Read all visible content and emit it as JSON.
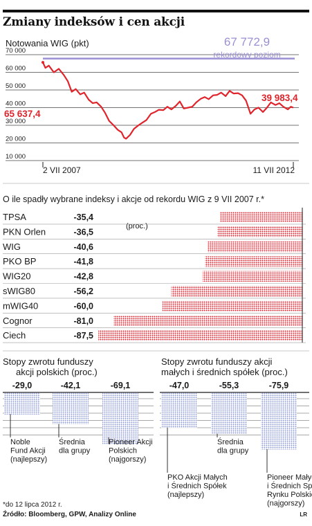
{
  "header": {
    "title": "Zmiany indeksów i cen akcji"
  },
  "chart_data": [
    {
      "type": "line",
      "title": "Notowania WIG (pkt)",
      "ylim": [
        10000,
        70000
      ],
      "yticks": [
        "70 000",
        "60 000",
        "50 000",
        "40 000",
        "30 000",
        "20 000",
        "10 000"
      ],
      "ytick_values": [
        70000,
        60000,
        50000,
        40000,
        30000,
        20000,
        10000
      ],
      "xlabels": [
        "2 VII 2007",
        "11 VII 2012"
      ],
      "record": {
        "value": 67772.9,
        "label": "67 772,9",
        "sublabel": "rekordowy poziom"
      },
      "start_label": "65 637,4",
      "end_label": "39 983,4",
      "series": [
        {
          "x": [
            2007.5,
            2007.55,
            2007.62,
            2007.72,
            2007.82,
            2007.92,
            2008.0,
            2008.08,
            2008.16,
            2008.25,
            2008.33,
            2008.42,
            2008.5,
            2008.58,
            2008.67,
            2008.75,
            2008.83,
            2008.92,
            2009.0,
            2009.08,
            2009.13,
            2009.17,
            2009.25,
            2009.33,
            2009.42,
            2009.5,
            2009.58,
            2009.67,
            2009.75,
            2009.83,
            2009.92,
            2010.0,
            2010.08,
            2010.17,
            2010.25,
            2010.33,
            2010.42,
            2010.5,
            2010.58,
            2010.67,
            2010.75,
            2010.83,
            2010.92,
            2011.0,
            2011.08,
            2011.17,
            2011.25,
            2011.33,
            2011.42,
            2011.5,
            2011.58,
            2011.67,
            2011.75,
            2011.83,
            2011.92,
            2012.0,
            2012.08,
            2012.17,
            2012.25,
            2012.33,
            2012.42,
            2012.48,
            2012.53
          ],
          "y": [
            65637.4,
            62500,
            63800,
            60000,
            62000,
            58500,
            55000,
            49000,
            50500,
            47500,
            48500,
            44500,
            42500,
            43000,
            40500,
            37000,
            32500,
            30000,
            27500,
            26000,
            23000,
            22400,
            24500,
            28000,
            30000,
            31500,
            33000,
            36500,
            37500,
            38800,
            38600,
            40500,
            39000,
            41000,
            43500,
            39500,
            40000,
            40500,
            43000,
            45000,
            46000,
            44800,
            47000,
            47200,
            48500,
            46500,
            49500,
            48000,
            48200,
            47000,
            44000,
            36500,
            39000,
            40000,
            37500,
            40000,
            43000,
            41500,
            42500,
            40500,
            39000,
            40500,
            39983.4
          ]
        }
      ]
    },
    {
      "type": "bar",
      "title": "O ile spadły wybrane indeksy i akcje od rekordu WIG z 9 VII 2007 r.*",
      "unit": "(proc.)",
      "categories": [
        "TPSA",
        "PKN Orlen",
        "WIG",
        "PKO BP",
        "WIG20",
        "sWIG80",
        "mWIG40",
        "Cognor",
        "Ciech"
      ],
      "values": [
        -35.4,
        -36.5,
        -40.6,
        -41.8,
        -42.8,
        -56.2,
        -60.0,
        -81.0,
        -87.5
      ],
      "labels": [
        "-35,4",
        "-36,5",
        "-40,6",
        "-41,8",
        "-42,8",
        "-56,2",
        "-60,0",
        "-81,0",
        "-87,5"
      ]
    },
    {
      "type": "bar",
      "title": "Stopy zwrotu funduszy akcji polskich (proc.)",
      "title_lines": [
        "Stopy zwrotu funduszy",
        "akcji polskich (proc.)"
      ],
      "values": [
        -29.0,
        -42.1,
        -69.1
      ],
      "labels": [
        "-29,0",
        "-42,1",
        "-69,1"
      ],
      "categories": [
        [
          "Noble",
          "Fund Akcji",
          "(najlepszy)"
        ],
        [
          "Średnia",
          "dla grupy"
        ],
        [
          "Pioneer Akcji",
          "Polskich",
          "(najgorszy)"
        ]
      ]
    },
    {
      "type": "bar",
      "title": "Stopy zwrotu funduszy akcji małych i średnich spółek (proc.)",
      "title_lines": [
        "Stopy zwrotu funduszy akcji",
        "małych i średnich spółek (proc.)"
      ],
      "values": [
        -47.0,
        -55.3,
        -75.9
      ],
      "labels": [
        "-47,0",
        "-55,3",
        "-75,9"
      ],
      "categories": [
        [
          "PKO Akcji Małych",
          "i Średnich Spółek",
          "(najlepszy)"
        ],
        [
          "Średnia",
          "dla grupy"
        ],
        [
          "Pioneer Małych",
          "i Średnich Spółek",
          "Rynku Polskiego",
          "(najgorszy)"
        ]
      ]
    }
  ],
  "footer": {
    "note": "*do 12 lipca 2012 r.",
    "source": "Źródło: Bloomberg, GPW, Analizy Online",
    "credit": "LR"
  },
  "colors": {
    "line": "#e0242b",
    "record": "#9b8fd4",
    "bar": "#e0242b",
    "fund_bar": "#a9b3dd",
    "grid": "#444444"
  }
}
